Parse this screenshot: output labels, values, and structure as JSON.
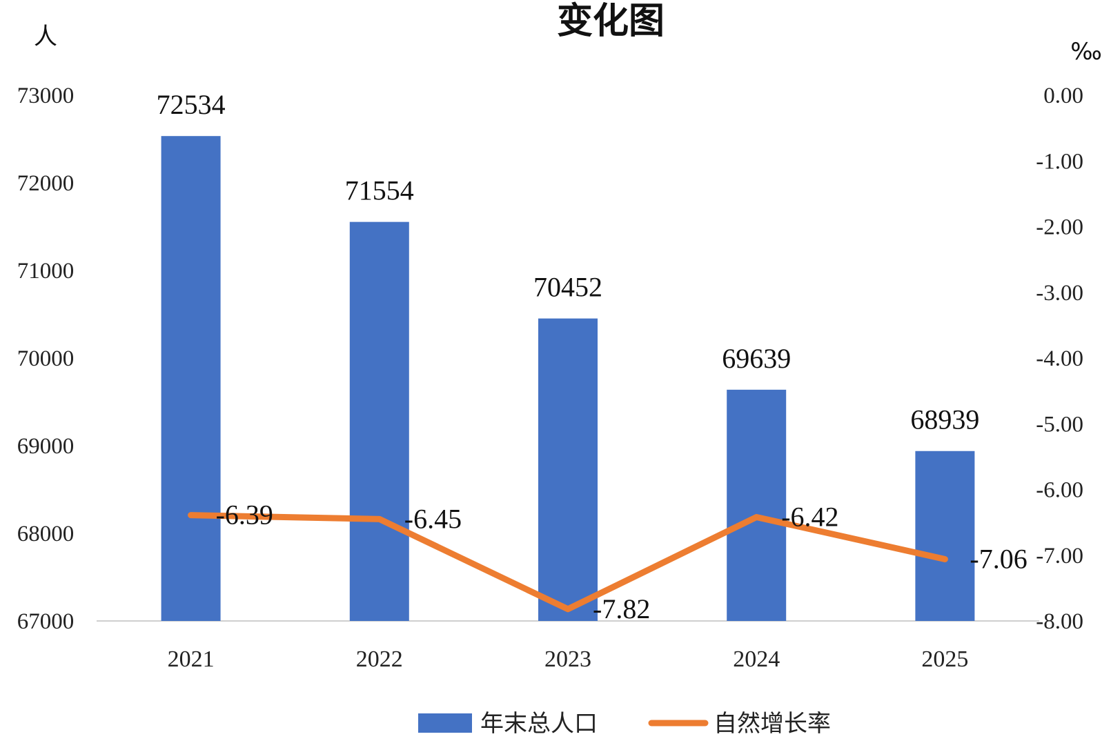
{
  "chart_data": {
    "type": "bar",
    "title": "变化图",
    "left_unit": "人",
    "right_unit": "‰",
    "categories": [
      "2021",
      "2022",
      "2023",
      "2024",
      "2025"
    ],
    "series": [
      {
        "name": "年末总人口",
        "type": "bar",
        "axis": "left",
        "color": "#4472C4",
        "values": [
          72534,
          71554,
          70452,
          69639,
          68939
        ]
      },
      {
        "name": "自然增长率",
        "type": "line",
        "axis": "right",
        "color": "#ED7D31",
        "values": [
          -6.39,
          -6.45,
          -7.82,
          -6.42,
          -7.06
        ]
      }
    ],
    "y_left": {
      "range": [
        67000,
        73000
      ],
      "ticks": [
        "67000",
        "68000",
        "69000",
        "70000",
        "71000",
        "72000",
        "73000"
      ]
    },
    "y_right": {
      "range": [
        -8.0,
        0.0
      ],
      "ticks": [
        "-8.00",
        "-7.00",
        "-6.00",
        "-5.00",
        "-4.00",
        "-3.00",
        "-2.00",
        "-1.00",
        "0.00"
      ]
    },
    "bar_labels": [
      "72534",
      "71554",
      "70452",
      "69639",
      "68939"
    ],
    "line_labels": [
      "-6.39",
      "-6.45",
      "-7.82",
      "-6.42",
      "-7.06"
    ],
    "grid": false,
    "legend_position": "bottom"
  }
}
